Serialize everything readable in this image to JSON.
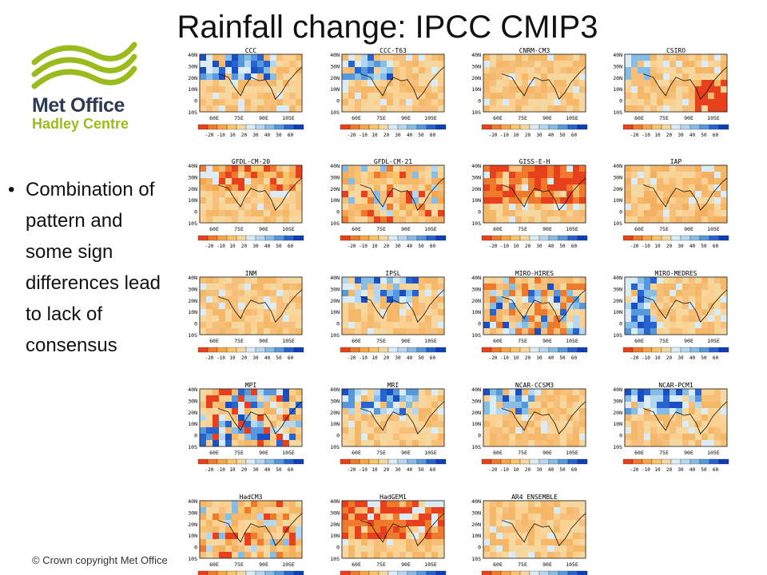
{
  "slide": {
    "title": "Rainfall change: IPCC CMIP3",
    "logo": {
      "line1": "Met Office",
      "line2": "Hadley Centre",
      "green": "#9bbb1c",
      "navy": "#2c3a52"
    },
    "bullet": "Combination of pattern and some sign differences lead to lack of consensus",
    "copyright": "© Crown  copyright   Met Office"
  },
  "chart_data": {
    "type": "heatmap",
    "lat_ticks": [
      "40N",
      "30N",
      "20N",
      "10N",
      "0",
      "10S"
    ],
    "lon_ticks": [
      "60E",
      "75E",
      "90E",
      "105E"
    ],
    "colorbar": {
      "ticks": [
        "-20",
        "-10",
        "10",
        "20",
        "30",
        "40",
        "50",
        "60"
      ],
      "colors": [
        "#e8401c",
        "#f07a2c",
        "#f7a54a",
        "#fbc56a",
        "#f4d8a0",
        "#dcecf6",
        "#b4d6ef",
        "#86bde6",
        "#5599dc",
        "#2864cf",
        "#0d3fb8"
      ]
    },
    "models": [
      {
        "name": "CCC",
        "pattern": "wet_north"
      },
      {
        "name": "CCC-T63",
        "pattern": "wet_nw"
      },
      {
        "name": "CNRM-CM3",
        "pattern": "weak"
      },
      {
        "name": "CSIRO",
        "pattern": "dry_east"
      },
      {
        "name": "GFDL-CM-20",
        "pattern": "dry"
      },
      {
        "name": "GFDL-CM-21",
        "pattern": "dry_mixed"
      },
      {
        "name": "GISS-E-H",
        "pattern": "dry_strong"
      },
      {
        "name": "IAP",
        "pattern": "weak_dry"
      },
      {
        "name": "INM",
        "pattern": "weak"
      },
      {
        "name": "IPSL",
        "pattern": "wet_north"
      },
      {
        "name": "MIRO-HIRES",
        "pattern": "mixed"
      },
      {
        "name": "MIRO-MEDRES",
        "pattern": "wet_west"
      },
      {
        "name": "MPI",
        "pattern": "wet_mixed"
      },
      {
        "name": "MRI",
        "pattern": "wet_north"
      },
      {
        "name": "NCAR-CCSM3",
        "pattern": "wet_nw"
      },
      {
        "name": "NCAR-PCM1",
        "pattern": "wet_north"
      },
      {
        "name": "HadCM3",
        "pattern": "dry_mixed"
      },
      {
        "name": "HadGEM1",
        "pattern": "dry_strong"
      },
      {
        "name": "AR4 ENSEMBLE",
        "pattern": "weak"
      }
    ]
  }
}
